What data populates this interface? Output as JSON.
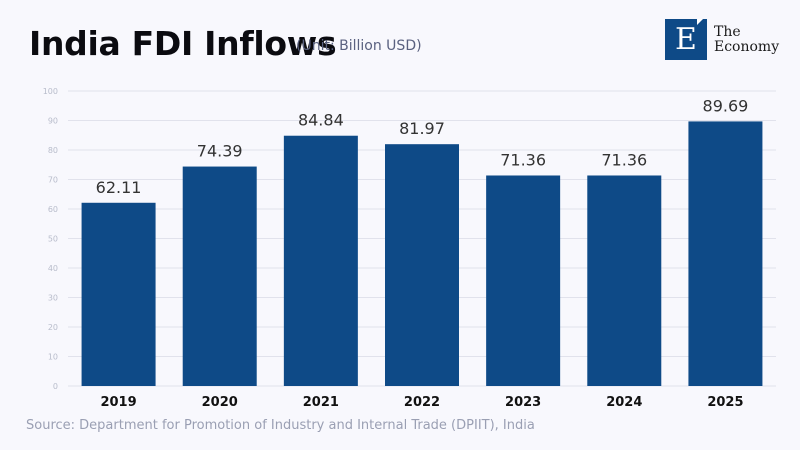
{
  "header": {
    "title": "India FDI Inflows",
    "unit": "(Unit: Billion USD)"
  },
  "logo": {
    "letter": "E",
    "line1": "The",
    "line2": "Economy"
  },
  "source": "Source: Department for Promotion of Industry and Internal Trade (DPIIT), India",
  "colors": {
    "bar": "#0e4a87",
    "grid": "#e1e2ec",
    "tick": "#b8bccb",
    "value_label": "#333333",
    "category_label": "#111111"
  },
  "chart_data": {
    "type": "bar",
    "title": "India FDI Inflows",
    "subtitle": "(Unit: Billion USD)",
    "xlabel": "",
    "ylabel": "",
    "categories": [
      "2019",
      "2020",
      "2021",
      "2022",
      "2023",
      "2024",
      "2025"
    ],
    "values": [
      62.11,
      74.39,
      84.84,
      81.97,
      71.36,
      71.36,
      89.69
    ],
    "value_labels": [
      "62.11",
      "74.39",
      "84.84",
      "81.97",
      "71.36",
      "71.36",
      "89.69"
    ],
    "ylim": [
      0,
      100
    ],
    "yticks": [
      0,
      10,
      20,
      30,
      40,
      50,
      60,
      70,
      80,
      90,
      100
    ],
    "grid": true,
    "legend": "none"
  }
}
